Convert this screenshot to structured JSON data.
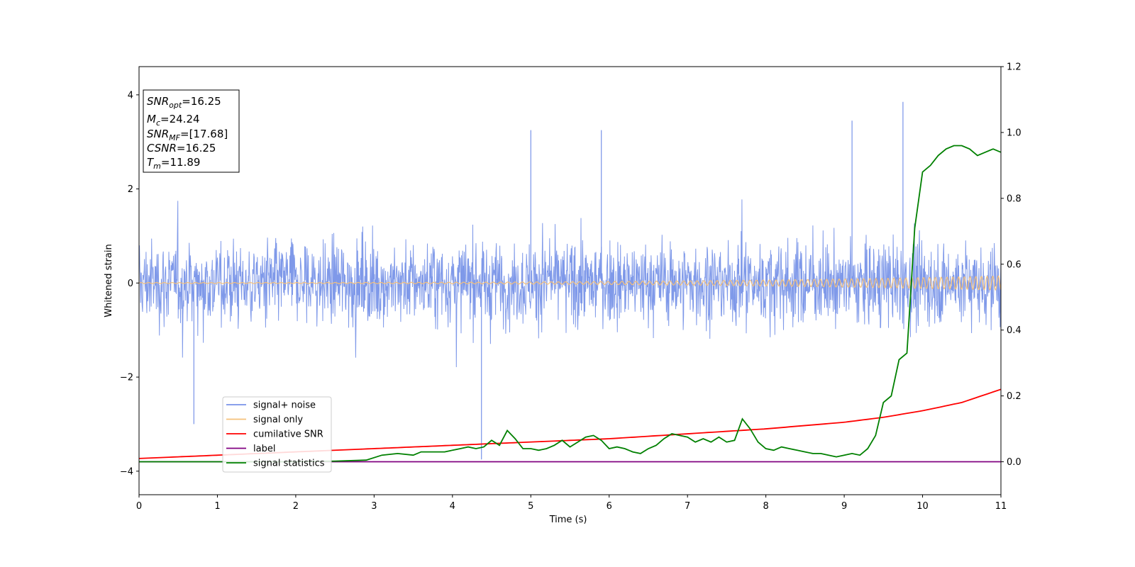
{
  "chart_data": {
    "type": "line",
    "xlabel": "Time (s)",
    "ylabel": "Whitened strain",
    "xlim": [
      0,
      11
    ],
    "ylim": [
      -4.5,
      4.6
    ],
    "y2lim": [
      -0.1,
      1.2
    ],
    "xticks": [
      "0",
      "1",
      "2",
      "3",
      "4",
      "5",
      "6",
      "7",
      "8",
      "9",
      "10",
      "11"
    ],
    "xtick_values": [
      0,
      1,
      2,
      3,
      4,
      5,
      6,
      7,
      8,
      9,
      10,
      11
    ],
    "yticks": [
      "−4",
      "−2",
      "0",
      "2",
      "4"
    ],
    "ytick_values": [
      -4,
      -2,
      0,
      2,
      4
    ],
    "y2ticks": [
      "0.0",
      "0.2",
      "0.4",
      "0.6",
      "0.8",
      "1.0",
      "1.2"
    ],
    "y2tick_values": [
      0,
      0.2,
      0.4,
      0.6,
      0.8,
      1.0,
      1.2
    ],
    "grid": false,
    "legend_position": "lower-left",
    "annotation_box": [
      {
        "main": "SNR",
        "sub": "opt",
        "rest": "=16.25"
      },
      {
        "main": "M",
        "sub": "c",
        "rest": "=24.24"
      },
      {
        "main": "SNR",
        "sub": "MF",
        "rest": "=[17.68]"
      },
      {
        "main": "CSNR",
        "sub": "",
        "rest": "=16.25"
      },
      {
        "main": "T",
        "sub": "m",
        "rest": "=11.89"
      }
    ],
    "series": [
      {
        "name": "signal+ noise",
        "axis": "left",
        "color": "#7893e8",
        "kind": "noise",
        "amplitude_typical": 1.1,
        "max": 3.85,
        "min": -3.75
      },
      {
        "name": "signal only",
        "axis": "left",
        "color": "#f5c07a",
        "kind": "chirp",
        "amplitude_start": 0.01,
        "amplitude_end": 0.15
      },
      {
        "name": "cumilative SNR",
        "axis": "right",
        "color": "#ff0000",
        "x": [
          0,
          1,
          2,
          3,
          4,
          5,
          6,
          7,
          8,
          9,
          9.5,
          10,
          10.5,
          11
        ],
        "y": [
          0.01,
          0.02,
          0.03,
          0.04,
          0.05,
          0.06,
          0.07,
          0.085,
          0.1,
          0.12,
          0.135,
          0.155,
          0.18,
          0.22
        ]
      },
      {
        "name": "label",
        "axis": "right",
        "color": "#800080",
        "x": [
          0,
          11
        ],
        "y": [
          0,
          0
        ]
      },
      {
        "name": "signal statistics",
        "axis": "right",
        "color": "#008000",
        "x": [
          0,
          1,
          2,
          2.5,
          2.9,
          3.1,
          3.3,
          3.5,
          3.6,
          3.7,
          3.9,
          4.0,
          4.1,
          4.2,
          4.3,
          4.4,
          4.5,
          4.6,
          4.7,
          4.8,
          4.9,
          5.0,
          5.1,
          5.2,
          5.3,
          5.4,
          5.5,
          5.6,
          5.7,
          5.8,
          5.9,
          6.0,
          6.1,
          6.2,
          6.3,
          6.4,
          6.5,
          6.6,
          6.7,
          6.8,
          6.9,
          7.0,
          7.1,
          7.2,
          7.3,
          7.4,
          7.5,
          7.6,
          7.7,
          7.8,
          7.9,
          8.0,
          8.1,
          8.2,
          8.3,
          8.4,
          8.5,
          8.6,
          8.7,
          8.8,
          8.9,
          9.0,
          9.1,
          9.2,
          9.3,
          9.4,
          9.5,
          9.6,
          9.7,
          9.8,
          9.9,
          10.0,
          10.1,
          10.2,
          10.3,
          10.4,
          10.5,
          10.6,
          10.7,
          10.8,
          10.9,
          11.0
        ],
        "y": [
          0,
          0,
          0,
          0.002,
          0.005,
          0.02,
          0.025,
          0.02,
          0.03,
          0.03,
          0.03,
          0.035,
          0.04,
          0.045,
          0.04,
          0.045,
          0.065,
          0.05,
          0.095,
          0.07,
          0.04,
          0.04,
          0.035,
          0.04,
          0.05,
          0.065,
          0.045,
          0.06,
          0.075,
          0.08,
          0.065,
          0.04,
          0.045,
          0.04,
          0.03,
          0.025,
          0.04,
          0.05,
          0.07,
          0.085,
          0.08,
          0.075,
          0.06,
          0.07,
          0.06,
          0.075,
          0.06,
          0.065,
          0.13,
          0.1,
          0.06,
          0.04,
          0.035,
          0.045,
          0.04,
          0.035,
          0.03,
          0.025,
          0.025,
          0.02,
          0.015,
          0.02,
          0.025,
          0.02,
          0.04,
          0.08,
          0.18,
          0.2,
          0.31,
          0.33,
          0.71,
          0.88,
          0.9,
          0.93,
          0.95,
          0.96,
          0.96,
          0.95,
          0.93,
          0.94,
          0.95,
          0.94
        ]
      }
    ]
  }
}
